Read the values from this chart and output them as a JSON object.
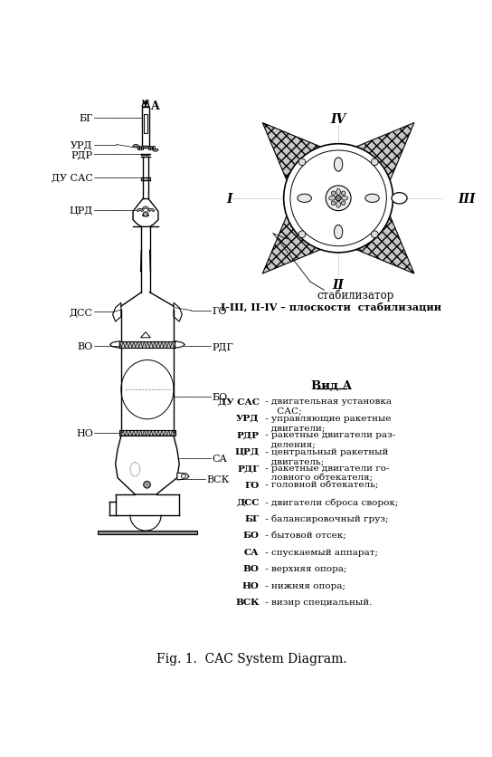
{
  "title": "Fig. 1.  CAC System Diagram.",
  "bg_color": "#ffffff",
  "legend_items": [
    [
      "ДУ САС",
      " - двигательная установка\n     САС;"
    ],
    [
      "УРД",
      " - управляющие ракетные\n   двигатели;"
    ],
    [
      "РДР",
      " - ракетные двигатели раз-\n   деления;"
    ],
    [
      "ЦРД",
      " - центральный ракетный\n   двигатель;"
    ],
    [
      "РДГ",
      " - ракетные двигатели го-\n   ловного обтекателя;"
    ],
    [
      "ГО",
      " - головной обтекатель;"
    ],
    [
      "ДСС",
      " - двигатели сброса сворок;"
    ],
    [
      "БГ",
      " - балансировочный груз;"
    ],
    [
      "БО",
      " - бытовой отсек;"
    ],
    [
      "СА",
      " - спускаемый аппарат;"
    ],
    [
      "ВО",
      " - верхняя опора;"
    ],
    [
      "НО",
      " - нижняя опора;"
    ],
    [
      "ВСК",
      " - визир специальный."
    ]
  ],
  "top_view_label": "стабилизатор",
  "planes_label": "I-III, II-IV – плоскости  стабилизации",
  "vid_a_label": "Вид А"
}
